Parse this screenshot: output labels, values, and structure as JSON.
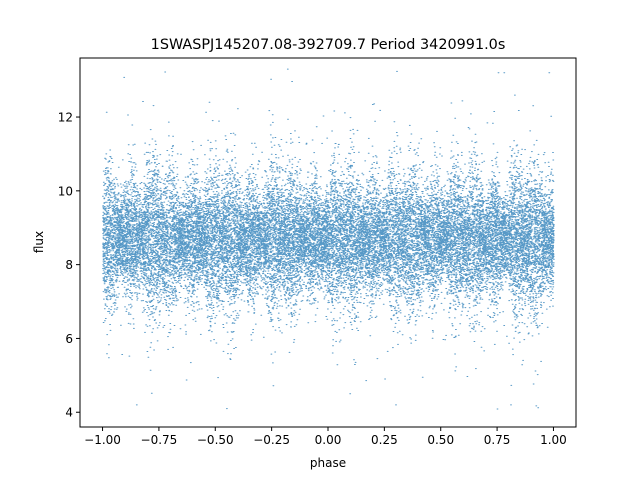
{
  "chart_data": {
    "type": "scatter",
    "title": "1SWASPJ145207.08-392709.7 Period 3420991.0s",
    "xlabel": "phase",
    "ylabel": "flux",
    "xlim": [
      -1.1,
      1.1
    ],
    "ylim": [
      3.6,
      13.6
    ],
    "xticks": [
      -1.0,
      -0.75,
      -0.5,
      -0.25,
      0.0,
      0.25,
      0.5,
      0.75,
      1.0
    ],
    "xtick_labels": [
      "−1.00",
      "−0.75",
      "−0.50",
      "−0.25",
      "0.00",
      "0.25",
      "0.50",
      "0.75",
      "1.00"
    ],
    "yticks": [
      4,
      6,
      8,
      10,
      12
    ],
    "ytick_labels": [
      "4",
      "6",
      "8",
      "10",
      "12"
    ],
    "grid": false,
    "series": [
      {
        "color": "#1f77b4",
        "marker_size": 0.6,
        "phase_range": [
          -1.0,
          1.0
        ],
        "flux_median": 8.7,
        "flux_core_range": [
          7.0,
          10.5
        ],
        "flux_outlier_range": [
          4.0,
          13.3
        ],
        "samples": [
          [
            -0.95,
            8.9
          ],
          [
            -0.9,
            8.5
          ],
          [
            -0.8,
            9.0
          ],
          [
            -0.7,
            8.7
          ],
          [
            -0.6,
            8.6
          ],
          [
            -0.5,
            8.6
          ],
          [
            -0.4,
            8.7
          ],
          [
            -0.3,
            8.5
          ],
          [
            -0.2,
            8.6
          ],
          [
            -0.1,
            8.7
          ],
          [
            0.0,
            8.8
          ],
          [
            0.1,
            8.6
          ],
          [
            0.2,
            8.7
          ],
          [
            0.3,
            8.9
          ],
          [
            0.4,
            8.7
          ],
          [
            0.5,
            8.6
          ],
          [
            0.6,
            8.5
          ],
          [
            0.7,
            8.7
          ],
          [
            0.8,
            8.8
          ],
          [
            0.9,
            8.6
          ],
          [
            0.95,
            8.8
          ]
        ],
        "extreme_points": [
          [
            -0.85,
            4.2
          ],
          [
            -0.45,
            4.1
          ],
          [
            -0.18,
            13.3
          ],
          [
            0.3,
            4.2
          ],
          [
            0.78,
            13.2
          ],
          [
            0.81,
            4.2
          ],
          [
            0.98,
            13.2
          ]
        ]
      }
    ]
  }
}
